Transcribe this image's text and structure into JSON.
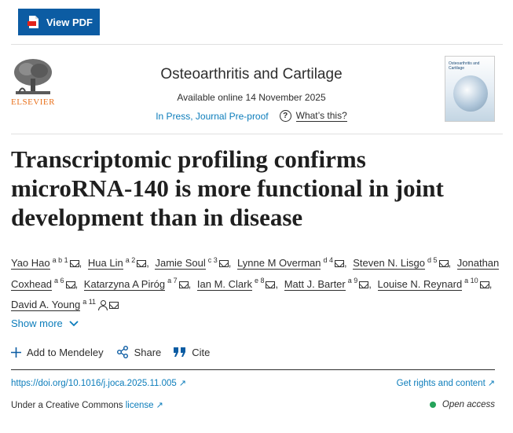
{
  "toolbar": {
    "view_pdf_label": "View PDF"
  },
  "publisher": {
    "name": "ELSEVIER"
  },
  "journal": {
    "title": "Osteoarthritis and Cartilage",
    "available": "Available online 14 November 2025",
    "status": "In Press, Journal Pre-proof",
    "whats_this": "What’s this?",
    "cover_title": "Osteoarthritis and Cartilage"
  },
  "article": {
    "title": "Transcriptomic profiling confirms microRNA-140 is more functional in joint development than in disease"
  },
  "authors": [
    {
      "name": "Yao Hao",
      "aff": "a b 1",
      "icons": [
        "mail"
      ]
    },
    {
      "name": "Hua Lin",
      "aff": "a 2",
      "icons": [
        "mail"
      ]
    },
    {
      "name": "Jamie Soul",
      "aff": "c 3",
      "icons": [
        "mail"
      ]
    },
    {
      "name": "Lynne M Overman",
      "aff": "d 4",
      "icons": [
        "mail"
      ]
    },
    {
      "name": "Steven N. Lisgo",
      "aff": "d 5",
      "icons": [
        "mail"
      ]
    },
    {
      "name": "Jonathan Coxhead",
      "aff": "a 6",
      "icons": [
        "mail"
      ]
    },
    {
      "name": "Katarzyna A Piróg",
      "aff": "a 7",
      "icons": [
        "mail"
      ]
    },
    {
      "name": "Ian M. Clark",
      "aff": "e 8",
      "icons": [
        "mail"
      ]
    },
    {
      "name": "Matt J. Barter",
      "aff": "a 9",
      "icons": [
        "mail"
      ]
    },
    {
      "name": "Louise N. Reynard",
      "aff": "a 10",
      "icons": [
        "mail"
      ]
    },
    {
      "name": "David A. Young",
      "aff": "a 11",
      "icons": [
        "person",
        "mail"
      ]
    }
  ],
  "show_more": "Show more",
  "actions": {
    "mendeley": "Add to Mendeley",
    "share": "Share",
    "cite": "Cite"
  },
  "links": {
    "doi": "https://doi.org/10.1016/j.joca.2025.11.005",
    "rights": "Get rights and content",
    "license_prefix": "Under a Creative Commons",
    "license_link": "license",
    "open_access": "Open access"
  },
  "colors": {
    "accent": "#0c5ca3",
    "link": "#0c7dbb",
    "publisher": "#e9711c",
    "open_access": "#25a35a"
  }
}
